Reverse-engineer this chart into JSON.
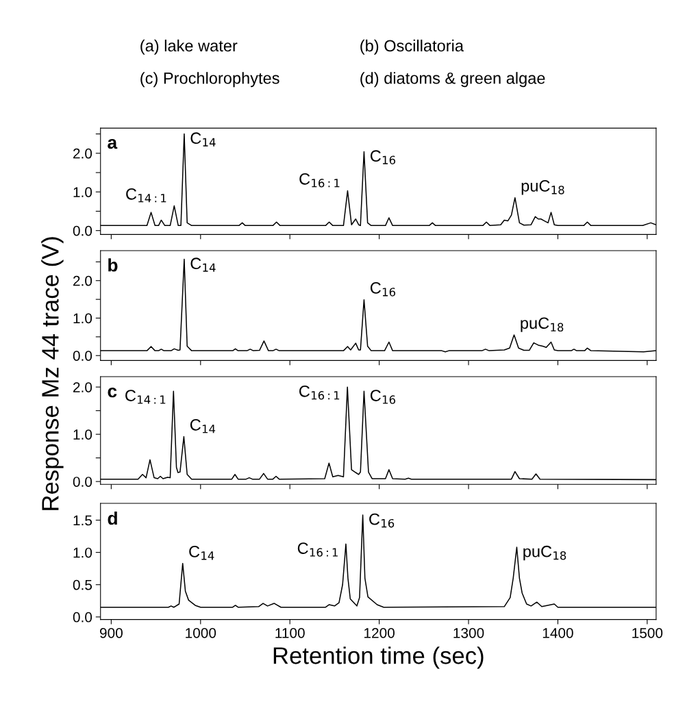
{
  "chart_data": [
    {
      "type": "line",
      "title": "a",
      "ylabel": "Response Mz 44 trace (V)",
      "xlim": [
        888,
        1510
      ],
      "xticks": [
        {
          "value": 900,
          "label": null
        },
        {
          "value": 1000,
          "label": null
        },
        {
          "value": 1100,
          "label": null
        },
        {
          "value": 1200,
          "label": null
        },
        {
          "value": 1300,
          "label": null
        },
        {
          "value": 1400,
          "label": null
        },
        {
          "value": 1500,
          "label": null
        }
      ],
      "ylim": [
        -0.1,
        2.65
      ],
      "yticks": [
        {
          "value": 0,
          "label": "0.0"
        },
        {
          "value": 0.5,
          "label": null
        },
        {
          "value": 1,
          "label": "1.0"
        },
        {
          "value": 1.5,
          "label": null
        },
        {
          "value": 2,
          "label": "2.0"
        },
        {
          "value": 2.5,
          "label": null
        }
      ],
      "tick_labels": "y",
      "grid": false,
      "line_style": "solid",
      "marker": "none",
      "annotations": [
        "(a) lake water",
        "(b) Oscillatoria",
        "(c) Prochlorophytes",
        "(d) diatoms & green algae",
        {
          "text": "C$_{14:1}$",
          "x": 970.5,
          "y": 0.64
        },
        {
          "text": "C$_{14}$",
          "x": 981.7,
          "y": 2.5
        },
        {
          "text": "C$_{16:1}$",
          "x": 1164.6,
          "y": 1.03
        },
        {
          "text": "C$_{16}$",
          "x": 1183,
          "y": 2.04
        },
        {
          "text": "puC$_{18}$",
          "x": 1352,
          "y": 0.85
        }
      ],
      "series": [
        {
          "color": "#000000",
          "x": [
            888,
            940,
            944.6,
            949,
            953,
            956,
            960,
            966,
            970.5,
            975,
            978,
            981.7,
            985,
            990,
            1043,
            1046.7,
            1050,
            1081,
            1085,
            1089,
            1140,
            1144,
            1148,
            1160,
            1164.6,
            1169,
            1173.7,
            1177,
            1179,
            1183,
            1187,
            1191,
            1207,
            1210.9,
            1215,
            1256,
            1259.5,
            1263,
            1316,
            1320,
            1324,
            1336,
            1340,
            1344,
            1348,
            1352,
            1357,
            1362,
            1370,
            1374.7,
            1378,
            1381,
            1385,
            1389,
            1392.4,
            1396,
            1400,
            1429,
            1433,
            1437,
            1495,
            1504,
            1510
          ],
          "values": [
            0.13,
            0.13,
            0.47,
            0.13,
            0.13,
            0.27,
            0.13,
            0.13,
            0.64,
            0.13,
            0.13,
            2.5,
            0.2,
            0.13,
            0.13,
            0.2,
            0.13,
            0.13,
            0.22,
            0.13,
            0.13,
            0.22,
            0.13,
            0.13,
            1.03,
            0.15,
            0.3,
            0.15,
            0.13,
            2.04,
            0.2,
            0.13,
            0.13,
            0.33,
            0.13,
            0.13,
            0.2,
            0.13,
            0.13,
            0.22,
            0.13,
            0.15,
            0.27,
            0.25,
            0.4,
            0.85,
            0.2,
            0.14,
            0.15,
            0.36,
            0.3,
            0.3,
            0.25,
            0.2,
            0.47,
            0.15,
            0.13,
            0.13,
            0.22,
            0.13,
            0.13,
            0.2,
            0.15
          ]
        }
      ]
    },
    {
      "type": "line",
      "title": "b",
      "xlim": [
        888,
        1510
      ],
      "xticks": [
        {
          "value": 900,
          "label": null
        },
        {
          "value": 1000,
          "label": null
        },
        {
          "value": 1100,
          "label": null
        },
        {
          "value": 1200,
          "label": null
        },
        {
          "value": 1300,
          "label": null
        },
        {
          "value": 1400,
          "label": null
        },
        {
          "value": 1500,
          "label": null
        }
      ],
      "ylim": [
        -0.13,
        2.8
      ],
      "yticks": [
        {
          "value": 0,
          "label": "0.0"
        },
        {
          "value": 0.5,
          "label": null
        },
        {
          "value": 1,
          "label": "1.0"
        },
        {
          "value": 1.5,
          "label": null
        },
        {
          "value": 2,
          "label": "2.0"
        },
        {
          "value": 2.5,
          "label": null
        }
      ],
      "tick_labels": "y",
      "grid": false,
      "line_style": "solid",
      "marker": "none",
      "annotations": [
        {
          "text": "C$_{14}$",
          "x": 981.7,
          "y": 2.57
        },
        {
          "text": "C$_{16}$",
          "x": 1183,
          "y": 1.49
        },
        {
          "text": "puC$_{18}$",
          "x": 1351,
          "y": 0.55
        }
      ],
      "series": [
        {
          "color": "#000000",
          "x": [
            888,
            940,
            944.6,
            949,
            953,
            956,
            959,
            967,
            970.5,
            975,
            977,
            981.7,
            985,
            990,
            1036,
            1039,
            1042,
            1052,
            1055.6,
            1059,
            1066,
            1071,
            1076,
            1081,
            1084.5,
            1088,
            1160,
            1164.6,
            1168,
            1173.7,
            1177,
            1179,
            1183,
            1187,
            1191,
            1206,
            1210.9,
            1215,
            1270,
            1274,
            1278,
            1315,
            1319,
            1323,
            1340,
            1346,
            1351,
            1356,
            1362,
            1368,
            1373,
            1378,
            1383,
            1387,
            1392.4,
            1396,
            1400,
            1415,
            1418,
            1421,
            1430,
            1433,
            1437,
            1496,
            1510
          ],
          "values": [
            0.13,
            0.13,
            0.24,
            0.13,
            0.13,
            0.17,
            0.13,
            0.13,
            0.18,
            0.14,
            0.15,
            2.57,
            0.25,
            0.13,
            0.13,
            0.18,
            0.13,
            0.13,
            0.17,
            0.13,
            0.14,
            0.39,
            0.13,
            0.13,
            0.17,
            0.13,
            0.13,
            0.24,
            0.15,
            0.33,
            0.15,
            0.15,
            1.49,
            0.25,
            0.13,
            0.13,
            0.36,
            0.13,
            0.13,
            0.1,
            0.13,
            0.13,
            0.17,
            0.13,
            0.15,
            0.2,
            0.55,
            0.2,
            0.14,
            0.14,
            0.34,
            0.28,
            0.25,
            0.22,
            0.36,
            0.15,
            0.13,
            0.13,
            0.17,
            0.13,
            0.13,
            0.2,
            0.13,
            0.1,
            0.13
          ]
        }
      ]
    },
    {
      "type": "line",
      "title": "c",
      "xlim": [
        888,
        1510
      ],
      "xticks": [
        {
          "value": 900,
          "label": null
        },
        {
          "value": 1000,
          "label": null
        },
        {
          "value": 1100,
          "label": null
        },
        {
          "value": 1200,
          "label": null
        },
        {
          "value": 1300,
          "label": null
        },
        {
          "value": 1400,
          "label": null
        },
        {
          "value": 1500,
          "label": null
        }
      ],
      "ylim": [
        -0.06,
        2.22
      ],
      "yticks": [
        {
          "value": 0,
          "label": "0.0"
        },
        {
          "value": 0.5,
          "label": null
        },
        {
          "value": 1,
          "label": "1.0"
        },
        {
          "value": 1.5,
          "label": null
        },
        {
          "value": 2,
          "label": "2.0"
        }
      ],
      "tick_labels": "y",
      "grid": false,
      "line_style": "solid",
      "marker": "none",
      "annotations": [
        {
          "text": "C$_{14:1}$",
          "x": 969.7,
          "y": 1.91
        },
        {
          "text": "C$_{14}$",
          "x": 981.3,
          "y": 0.95
        },
        {
          "text": "C$_{16:1}$",
          "x": 1164.4,
          "y": 2.0
        },
        {
          "text": "C$_{16}$",
          "x": 1183,
          "y": 1.91
        }
      ],
      "series": [
        {
          "color": "#000000",
          "x": [
            888,
            930,
            935,
            939,
            943.4,
            948,
            952,
            955,
            958,
            963,
            966,
            969.7,
            973,
            974.7,
            977,
            981.3,
            985,
            990,
            1035,
            1038.5,
            1042,
            1051,
            1054.5,
            1058,
            1066,
            1070.6,
            1075,
            1081,
            1084.5,
            1088,
            1139,
            1143.8,
            1148,
            1154,
            1160,
            1164.4,
            1169,
            1173.7,
            1177,
            1179,
            1183,
            1188,
            1192,
            1207,
            1210.9,
            1215,
            1229,
            1232.7,
            1236,
            1348,
            1352,
            1357,
            1371,
            1375.5,
            1380,
            1510
          ],
          "values": [
            0.05,
            0.05,
            0.15,
            0.08,
            0.46,
            0.08,
            0.06,
            0.11,
            0.06,
            0.09,
            0.08,
            1.91,
            0.3,
            0.19,
            0.2,
            0.95,
            0.15,
            0.05,
            0.05,
            0.15,
            0.05,
            0.05,
            0.08,
            0.05,
            0.05,
            0.17,
            0.05,
            0.05,
            0.11,
            0.05,
            0.06,
            0.39,
            0.1,
            0.13,
            0.1,
            2.0,
            0.25,
            0.19,
            0.15,
            0.2,
            1.91,
            0.2,
            0.06,
            0.06,
            0.25,
            0.06,
            0.05,
            0.07,
            0.05,
            0.05,
            0.21,
            0.06,
            0.05,
            0.16,
            0.05,
            0.04
          ]
        }
      ]
    },
    {
      "type": "line",
      "title": "d",
      "xlabel": "Retention time (sec)",
      "xlim": [
        888,
        1510
      ],
      "xticks": [
        900,
        1000,
        1100,
        1200,
        1300,
        1400,
        1500
      ],
      "ylim": [
        -0.04,
        1.76
      ],
      "yticks": [
        {
          "value": 0,
          "label": "0.0"
        },
        0.5,
        {
          "value": 1,
          "label": "1.0"
        },
        1.5
      ],
      "grid": false,
      "line_style": "solid",
      "marker": "none",
      "annotations": [
        {
          "text": "C$_{14}$",
          "x": 980,
          "y": 0.83
        },
        {
          "text": "C$_{16:1}$",
          "x": 1162.7,
          "y": 1.13
        },
        {
          "text": "C$_{16}$",
          "x": 1181.6,
          "y": 1.58
        },
        {
          "text": "puC$_{18}$",
          "x": 1354,
          "y": 1.08
        }
      ],
      "series": [
        {
          "color": "#000000",
          "x": [
            888,
            964,
            967,
            970,
            976,
            980,
            983,
            986.6,
            994,
            1000,
            1036,
            1039,
            1042,
            1065,
            1070,
            1075,
            1082.5,
            1090,
            1140,
            1144,
            1150,
            1155,
            1159,
            1162.7,
            1165,
            1167.6,
            1175,
            1178,
            1181.6,
            1184,
            1187.4,
            1197.7,
            1205,
            1340,
            1346.6,
            1350,
            1354,
            1357,
            1360,
            1365,
            1370,
            1376.5,
            1382,
            1396,
            1400,
            1510
          ],
          "values": [
            0.15,
            0.15,
            0.17,
            0.15,
            0.2,
            0.83,
            0.4,
            0.26,
            0.18,
            0.15,
            0.15,
            0.18,
            0.15,
            0.16,
            0.21,
            0.17,
            0.21,
            0.15,
            0.15,
            0.19,
            0.17,
            0.22,
            0.5,
            1.13,
            0.6,
            0.28,
            0.17,
            0.3,
            1.58,
            0.6,
            0.31,
            0.19,
            0.15,
            0.16,
            0.3,
            0.6,
            1.08,
            0.6,
            0.37,
            0.2,
            0.17,
            0.23,
            0.16,
            0.2,
            0.15,
            0.15
          ]
        }
      ]
    }
  ]
}
